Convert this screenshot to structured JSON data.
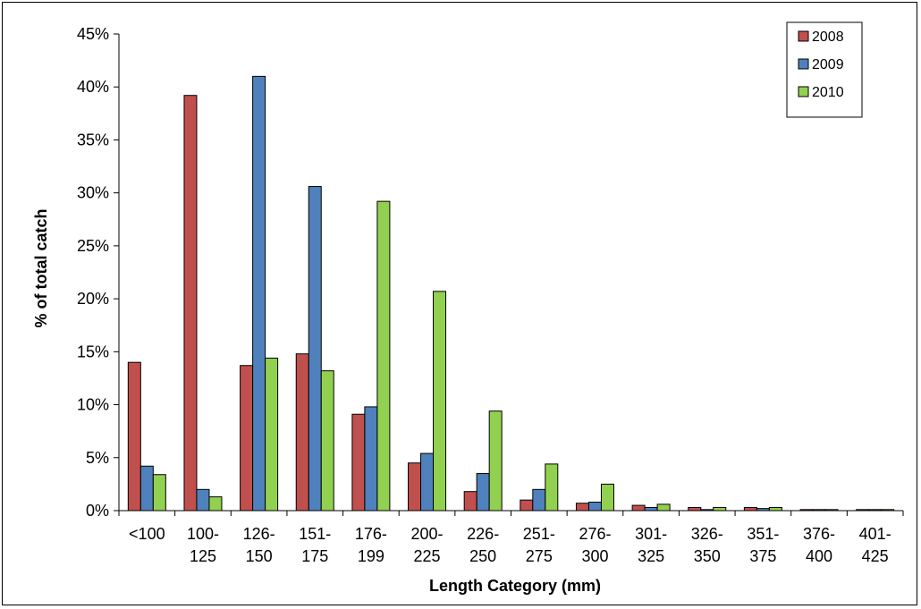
{
  "chart_data": {
    "type": "bar",
    "title": "",
    "xlabel": "Length Category (mm)",
    "ylabel": "% of total catch",
    "ylim": [
      0,
      45
    ],
    "y_unit": "%",
    "y_ticks": [
      "0%",
      "5%",
      "10%",
      "15%",
      "20%",
      "25%",
      "30%",
      "35%",
      "40%",
      "45%"
    ],
    "grid": false,
    "legend_position": "top-right",
    "categories": [
      [
        "<100"
      ],
      [
        "100-",
        "125"
      ],
      [
        "126-",
        "150"
      ],
      [
        "151-",
        "175"
      ],
      [
        "176-",
        "199"
      ],
      [
        "200-",
        "225"
      ],
      [
        "226-",
        "250"
      ],
      [
        "251-",
        "275"
      ],
      [
        "276-",
        "300"
      ],
      [
        "301-",
        "325"
      ],
      [
        "326-",
        "350"
      ],
      [
        "351-",
        "375"
      ],
      [
        "376-",
        "400"
      ],
      [
        "401-",
        "425"
      ]
    ],
    "series": [
      {
        "name": "2008",
        "color": "#C0504D",
        "values": [
          14.0,
          39.2,
          13.7,
          14.8,
          9.1,
          4.5,
          1.8,
          1.0,
          0.7,
          0.5,
          0.3,
          0.3,
          0.1,
          0.1
        ]
      },
      {
        "name": "2009",
        "color": "#4F81BD",
        "values": [
          4.2,
          2.0,
          41.0,
          30.6,
          9.8,
          5.4,
          3.5,
          2.0,
          0.8,
          0.3,
          0.1,
          0.2,
          0.1,
          0.1
        ]
      },
      {
        "name": "2010",
        "color": "#92D050",
        "values": [
          3.4,
          1.3,
          14.4,
          13.2,
          29.2,
          20.7,
          9.4,
          4.4,
          2.5,
          0.6,
          0.3,
          0.3,
          0.1,
          0.1
        ]
      }
    ]
  }
}
